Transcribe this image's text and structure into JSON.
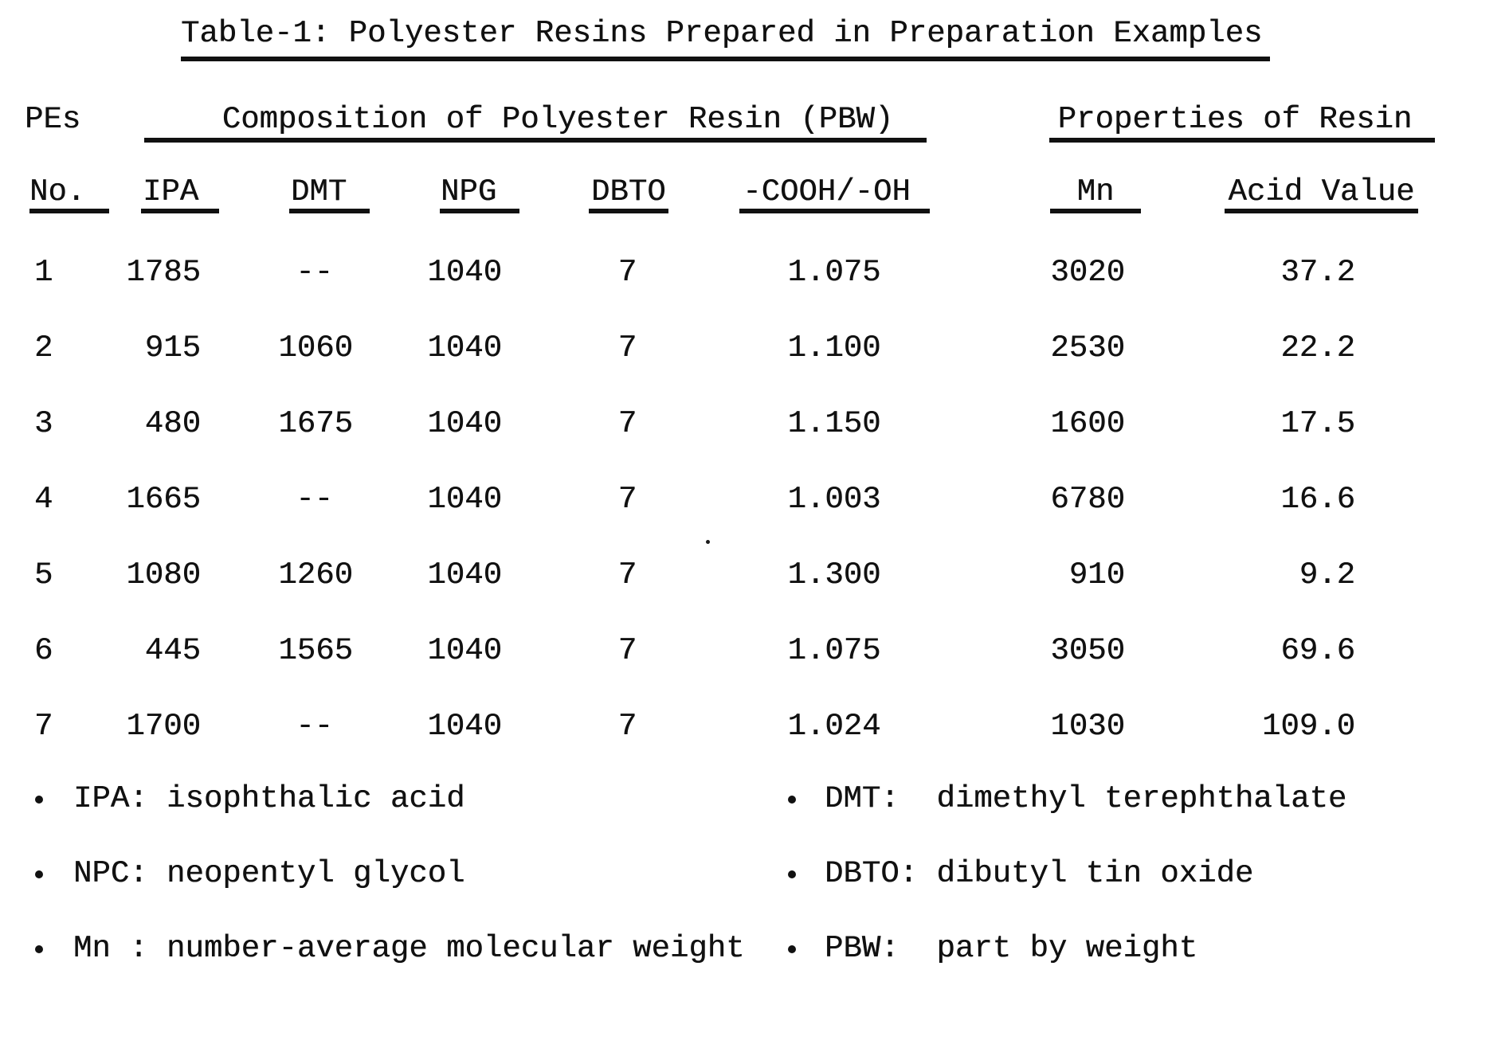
{
  "page": {
    "title": "Table-1: Polyester Resins Prepared in Preparation Examples"
  },
  "table": {
    "group_headers": {
      "pes": "PEs",
      "composition": "Composition of Polyester Resin (PBW)",
      "properties": "Properties of Resin"
    },
    "columns": [
      "No.",
      "IPA",
      "DMT",
      "NPG",
      "DBTO",
      "-COOH/-OH",
      "Mn",
      "Acid Value"
    ],
    "rows": [
      [
        "1",
        "1785",
        "--",
        "1040",
        "7",
        "1.075",
        "3020",
        "37.2"
      ],
      [
        "2",
        "915",
        "1060",
        "1040",
        "7",
        "1.100",
        "2530",
        "22.2"
      ],
      [
        "3",
        "480",
        "1675",
        "1040",
        "7",
        "1.150",
        "1600",
        "17.5"
      ],
      [
        "4",
        "1665",
        "--",
        "1040",
        "7",
        "1.003",
        "6780",
        "16.6"
      ],
      [
        "5",
        "1080",
        "1260",
        "1040",
        "7",
        "1.300",
        "910",
        "9.2"
      ],
      [
        "6",
        "445",
        "1565",
        "1040",
        "7",
        "1.075",
        "3050",
        "69.6"
      ],
      [
        "7",
        "1700",
        "--",
        "1040",
        "7",
        "1.024",
        "1030",
        "109.0"
      ]
    ]
  },
  "footnotes": {
    "left": [
      "IPA: isophthalic acid",
      "NPC: neopentyl glycol",
      "Mn : number-average molecular weight"
    ],
    "right": [
      "DMT:  dimethyl terephthalate",
      "DBTO: dibutyl tin oxide",
      "PBW:  part by weight"
    ]
  },
  "colors": {
    "ink": "#111111",
    "paper": "#ffffff"
  }
}
